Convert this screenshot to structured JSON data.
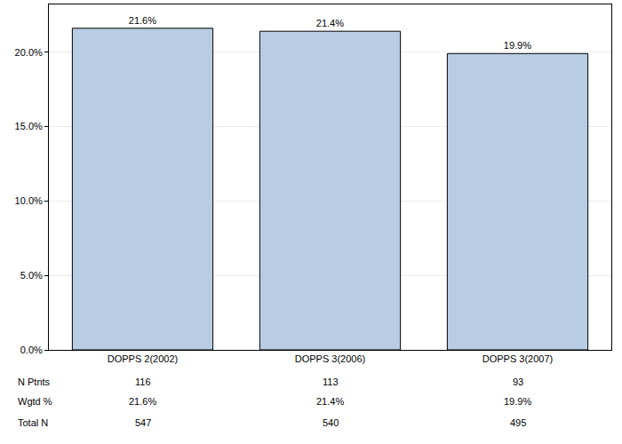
{
  "chart_data": {
    "type": "bar",
    "categories": [
      "DOPPS 2(2002)",
      "DOPPS 3(2006)",
      "DOPPS 3(2007)"
    ],
    "values": [
      21.6,
      21.4,
      19.9
    ],
    "value_labels": [
      "21.6%",
      "21.4%",
      "19.9%"
    ],
    "data_labels": true,
    "color": "#b8cce4",
    "ylim": [
      0,
      23.2
    ],
    "yticks": [
      {
        "value": 0,
        "label": "0.0%"
      },
      {
        "value": 5,
        "label": "5.0%"
      },
      {
        "value": 10,
        "label": "10.0%"
      },
      {
        "value": 15,
        "label": "15.0%"
      },
      {
        "value": 20,
        "label": "20.0%"
      }
    ],
    "grid": true
  },
  "table": {
    "rows": [
      {
        "label": "N Ptnts",
        "values": [
          "116",
          "113",
          "93"
        ]
      },
      {
        "label": "Wgtd %",
        "values": [
          "21.6%",
          "21.4%",
          "19.9%"
        ]
      },
      {
        "label": "Total N",
        "values": [
          "547",
          "540",
          "495"
        ]
      }
    ]
  }
}
